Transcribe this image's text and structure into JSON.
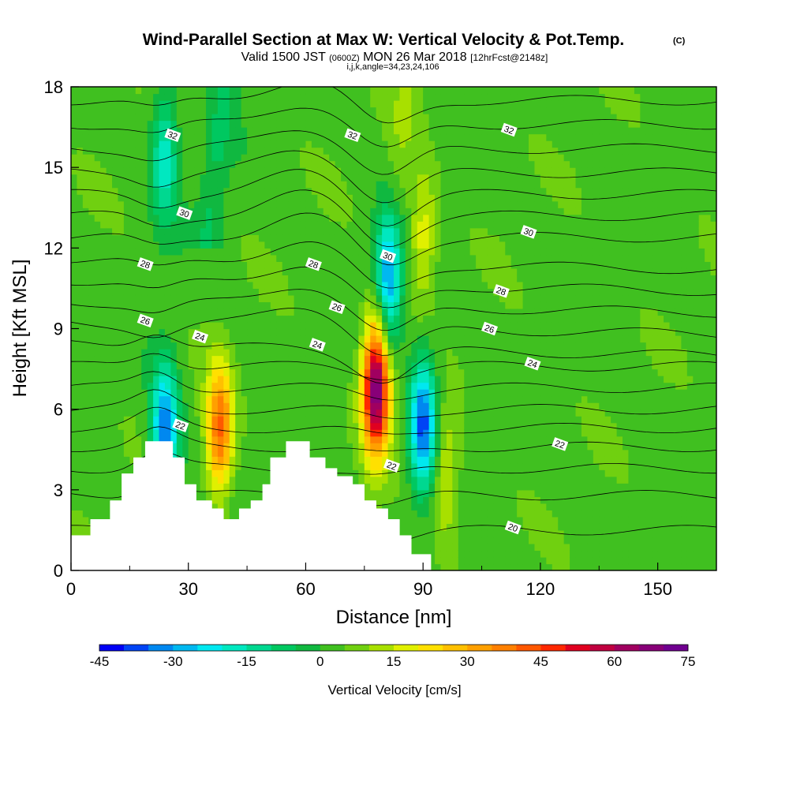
{
  "header": {
    "title": "Wind-Parallel Section at Max W: Vertical Velocity & Pot.Temp.",
    "copyright": "(C)",
    "valid_prefix": "Valid 1500 JST",
    "valid_utc": "(0600Z)",
    "valid_date": "MON 26 Mar 2018",
    "forecast": "[12hrFcst@2148z]",
    "params": "i,j,k,angle=34,23,24,106"
  },
  "chart_data": {
    "type": "heatmap",
    "title": "Wind-Parallel Section at Max W: Vertical Velocity & Pot.Temp.",
    "xlabel": "Distance [nm]",
    "ylabel": "Height [Kft MSL]",
    "xlim": [
      0,
      165
    ],
    "ylim": [
      0,
      18
    ],
    "xticks": [
      0,
      30,
      60,
      90,
      120,
      150
    ],
    "yticks": [
      0,
      3,
      6,
      9,
      12,
      15,
      18
    ],
    "colorbar": {
      "label": "Vertical Velocity [cm/s]",
      "ticks": [
        -45,
        -30,
        -15,
        0,
        15,
        30,
        45,
        60,
        75
      ],
      "levels": [
        -45,
        -40,
        -35,
        -30,
        -25,
        -20,
        -15,
        -10,
        -5,
        0,
        5,
        10,
        15,
        20,
        25,
        30,
        35,
        40,
        45,
        50,
        55,
        60,
        65,
        70,
        75
      ],
      "colors": [
        "#0000f5",
        "#0044f5",
        "#0088f0",
        "#00b8f0",
        "#00e8f0",
        "#00e8c0",
        "#00d890",
        "#00c860",
        "#10b840",
        "#40c020",
        "#70d010",
        "#a8e000",
        "#e0f000",
        "#ffe000",
        "#ffc000",
        "#ffa000",
        "#ff8000",
        "#ff5800",
        "#ff2800",
        "#e00020",
        "#c00040",
        "#a00060",
        "#880078",
        "#700090"
      ]
    },
    "velocity_cores": [
      {
        "x": 78,
        "y": 6.8,
        "w": 68,
        "sign": "updraft"
      },
      {
        "x": 38,
        "y": 5.2,
        "w": 38,
        "sign": "updraft"
      },
      {
        "x": 24,
        "y": 5.2,
        "w": -38,
        "sign": "downdraft"
      },
      {
        "x": 81,
        "y": 11,
        "w": -40,
        "sign": "downdraft"
      },
      {
        "x": 90,
        "y": 5.5,
        "w": -40,
        "sign": "downdraft"
      },
      {
        "x": 96,
        "y": 3.5,
        "w": 15,
        "sign": "updraft"
      },
      {
        "x": 90,
        "y": 12.5,
        "w": 16,
        "sign": "updraft"
      },
      {
        "x": 24,
        "y": 15.5,
        "w": -22,
        "sign": "downdraft"
      }
    ],
    "contour_series": {
      "name": "Potential Temperature",
      "labels": [
        {
          "text": "32",
          "x": 26,
          "y": 16.2
        },
        {
          "text": "32",
          "x": 72,
          "y": 16.2
        },
        {
          "text": "32",
          "x": 112,
          "y": 16.4
        },
        {
          "text": "30",
          "x": 29,
          "y": 13.3
        },
        {
          "text": "30",
          "x": 81,
          "y": 11.7
        },
        {
          "text": "30",
          "x": 117,
          "y": 12.6
        },
        {
          "text": "28",
          "x": 19,
          "y": 11.4
        },
        {
          "text": "28",
          "x": 62,
          "y": 11.4
        },
        {
          "text": "28",
          "x": 110,
          "y": 10.4
        },
        {
          "text": "26",
          "x": 19,
          "y": 9.3
        },
        {
          "text": "26",
          "x": 68,
          "y": 9.8
        },
        {
          "text": "26",
          "x": 107,
          "y": 9.0
        },
        {
          "text": "24",
          "x": 33,
          "y": 8.7
        },
        {
          "text": "24",
          "x": 63,
          "y": 8.4
        },
        {
          "text": "24",
          "x": 118,
          "y": 7.7
        },
        {
          "text": "22",
          "x": 28,
          "y": 5.4
        },
        {
          "text": "22",
          "x": 82,
          "y": 3.9
        },
        {
          "text": "22",
          "x": 125,
          "y": 4.7
        },
        {
          "text": "20",
          "x": 113,
          "y": 1.6
        }
      ]
    }
  }
}
